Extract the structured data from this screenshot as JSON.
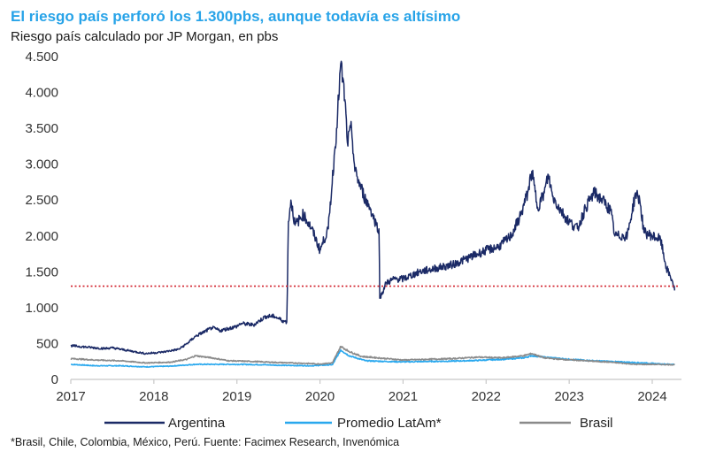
{
  "header": {
    "title": "El riesgo país perforó los 1.300pbs, aunque todavía es altísimo",
    "subtitle": "Riesgo país calculado por JP Morgan, en pbs"
  },
  "footnote": "*Brasil, Chile, Colombia, México, Perú. Fuente: Facimex Research, Invenómica",
  "colors": {
    "argentina": "#1b2a66",
    "latam": "#29a8ee",
    "brasil": "#8a8a8a",
    "reference": "#d11f2a",
    "axis": "#c8c8c8"
  },
  "chart_data": {
    "type": "line",
    "title": "El riesgo país perforó los 1.300pbs, aunque todavía es altísimo",
    "subtitle": "Riesgo país calculado por JP Morgan, en pbs",
    "xlabel": "",
    "ylabel": "",
    "xlim": [
      2017.0,
      2024.4
    ],
    "ylim": [
      0,
      4500
    ],
    "y_ticks": [
      0,
      500,
      1000,
      1500,
      2000,
      2500,
      3000,
      3500,
      4000,
      4500
    ],
    "y_tick_labels": [
      "0",
      "500",
      "1.000",
      "1.500",
      "2.000",
      "2.500",
      "3.000",
      "3.500",
      "4.000",
      "4.500"
    ],
    "x_ticks": [
      2017,
      2018,
      2019,
      2020,
      2021,
      2022,
      2023,
      2024
    ],
    "x_tick_labels": [
      "2017",
      "2018",
      "2019",
      "2020",
      "2021",
      "2022",
      "2023",
      "2024"
    ],
    "grid": false,
    "legend_position": "bottom",
    "reference_line": {
      "value": 1300,
      "style": "dotted",
      "color": "#d11f2a"
    },
    "series": [
      {
        "name": "Argentina",
        "color": "#1b2a66",
        "points": [
          [
            2017.0,
            470
          ],
          [
            2017.2,
            450
          ],
          [
            2017.4,
            430
          ],
          [
            2017.5,
            440
          ],
          [
            2017.7,
            400
          ],
          [
            2017.9,
            360
          ],
          [
            2018.1,
            380
          ],
          [
            2018.3,
            420
          ],
          [
            2018.4,
            500
          ],
          [
            2018.5,
            600
          ],
          [
            2018.7,
            720
          ],
          [
            2018.8,
            680
          ],
          [
            2019.0,
            740
          ],
          [
            2019.05,
            780
          ],
          [
            2019.2,
            760
          ],
          [
            2019.35,
            880
          ],
          [
            2019.45,
            880
          ],
          [
            2019.55,
            820
          ],
          [
            2019.6,
            800
          ],
          [
            2019.62,
            2200
          ],
          [
            2019.65,
            2500
          ],
          [
            2019.7,
            2150
          ],
          [
            2019.8,
            2300
          ],
          [
            2019.9,
            2100
          ],
          [
            2020.0,
            1800
          ],
          [
            2020.1,
            2100
          ],
          [
            2020.2,
            3500
          ],
          [
            2020.25,
            4400
          ],
          [
            2020.3,
            3900
          ],
          [
            2020.33,
            3300
          ],
          [
            2020.38,
            3500
          ],
          [
            2020.42,
            2900
          ],
          [
            2020.55,
            2500
          ],
          [
            2020.6,
            2400
          ],
          [
            2020.68,
            2150
          ],
          [
            2020.71,
            2100
          ],
          [
            2020.72,
            1130
          ],
          [
            2020.8,
            1350
          ],
          [
            2020.9,
            1400
          ],
          [
            2021.0,
            1400
          ],
          [
            2021.2,
            1500
          ],
          [
            2021.4,
            1550
          ],
          [
            2021.6,
            1600
          ],
          [
            2021.8,
            1700
          ],
          [
            2022.0,
            1800
          ],
          [
            2022.15,
            1850
          ],
          [
            2022.3,
            2000
          ],
          [
            2022.42,
            2300
          ],
          [
            2022.5,
            2600
          ],
          [
            2022.55,
            2900
          ],
          [
            2022.62,
            2400
          ],
          [
            2022.7,
            2600
          ],
          [
            2022.75,
            2850
          ],
          [
            2022.8,
            2550
          ],
          [
            2022.9,
            2350
          ],
          [
            2023.0,
            2200
          ],
          [
            2023.1,
            2100
          ],
          [
            2023.2,
            2400
          ],
          [
            2023.3,
            2600
          ],
          [
            2023.4,
            2500
          ],
          [
            2023.5,
            2350
          ],
          [
            2023.55,
            2000
          ],
          [
            2023.7,
            2000
          ],
          [
            2023.8,
            2600
          ],
          [
            2023.85,
            2500
          ],
          [
            2023.9,
            2050
          ],
          [
            2024.0,
            2000
          ],
          [
            2024.1,
            1950
          ],
          [
            2024.17,
            1550
          ],
          [
            2024.24,
            1380
          ],
          [
            2024.27,
            1240
          ]
        ]
      },
      {
        "name": "Promedio LatAm*",
        "color": "#29a8ee",
        "points": [
          [
            2017.0,
            210
          ],
          [
            2017.3,
            190
          ],
          [
            2017.6,
            190
          ],
          [
            2017.9,
            175
          ],
          [
            2018.2,
            185
          ],
          [
            2018.5,
            210
          ],
          [
            2018.8,
            210
          ],
          [
            2019.0,
            210
          ],
          [
            2019.3,
            205
          ],
          [
            2019.6,
            195
          ],
          [
            2019.9,
            190
          ],
          [
            2020.15,
            205
          ],
          [
            2020.25,
            410
          ],
          [
            2020.35,
            330
          ],
          [
            2020.55,
            260
          ],
          [
            2020.8,
            250
          ],
          [
            2021.0,
            245
          ],
          [
            2021.3,
            250
          ],
          [
            2021.6,
            255
          ],
          [
            2021.9,
            265
          ],
          [
            2022.2,
            280
          ],
          [
            2022.45,
            300
          ],
          [
            2022.55,
            330
          ],
          [
            2022.7,
            310
          ],
          [
            2023.0,
            280
          ],
          [
            2023.3,
            260
          ],
          [
            2023.6,
            245
          ],
          [
            2023.9,
            230
          ],
          [
            2024.1,
            215
          ],
          [
            2024.27,
            210
          ]
        ]
      },
      {
        "name": "Brasil",
        "color": "#8a8a8a",
        "points": [
          [
            2017.0,
            290
          ],
          [
            2017.3,
            270
          ],
          [
            2017.6,
            260
          ],
          [
            2017.9,
            230
          ],
          [
            2018.2,
            240
          ],
          [
            2018.4,
            280
          ],
          [
            2018.5,
            330
          ],
          [
            2018.7,
            300
          ],
          [
            2018.9,
            260
          ],
          [
            2019.2,
            250
          ],
          [
            2019.5,
            235
          ],
          [
            2019.8,
            225
          ],
          [
            2020.0,
            215
          ],
          [
            2020.15,
            230
          ],
          [
            2020.25,
            460
          ],
          [
            2020.35,
            390
          ],
          [
            2020.5,
            320
          ],
          [
            2020.8,
            290
          ],
          [
            2021.0,
            270
          ],
          [
            2021.3,
            280
          ],
          [
            2021.6,
            290
          ],
          [
            2021.9,
            310
          ],
          [
            2022.2,
            300
          ],
          [
            2022.45,
            330
          ],
          [
            2022.55,
            360
          ],
          [
            2022.7,
            300
          ],
          [
            2022.9,
            280
          ],
          [
            2023.2,
            260
          ],
          [
            2023.5,
            240
          ],
          [
            2023.8,
            210
          ],
          [
            2024.0,
            210
          ],
          [
            2024.27,
            205
          ]
        ]
      }
    ]
  }
}
